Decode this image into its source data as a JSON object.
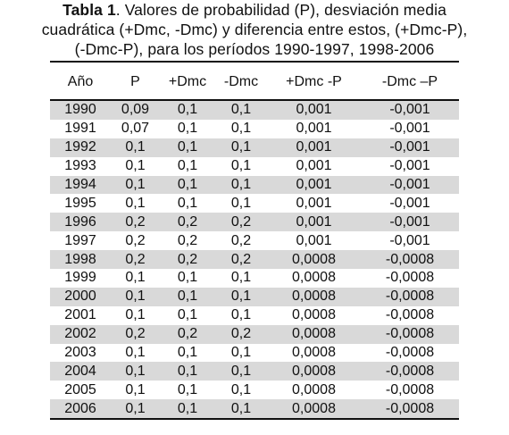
{
  "caption": {
    "label": "Tabla 1",
    "line1_rest": ". Valores de probabilidad (P), desviación media",
    "line2": "cuadrática (+Dmc, -Dmc) y diferencia entre estos, (+Dmc-P),",
    "line3": "(-Dmc-P), para los períodos 1990-1997, 1998-2006"
  },
  "table": {
    "headers": [
      "Año",
      "P",
      "+Dmc",
      "-Dmc",
      "+Dmc -P",
      "-Dmc –P"
    ],
    "rows": [
      [
        "1990",
        "0,09",
        "0,1",
        "0,1",
        "0,001",
        "-0,001"
      ],
      [
        "1991",
        "0,07",
        "0,1",
        "0,1",
        "0,001",
        "-0,001"
      ],
      [
        "1992",
        "0,1",
        "0,1",
        "0,1",
        "0,001",
        "-0,001"
      ],
      [
        "1993",
        "0,1",
        "0,1",
        "0,1",
        "0,001",
        "-0,001"
      ],
      [
        "1994",
        "0,1",
        "0,1",
        "0,1",
        "0,001",
        "-0,001"
      ],
      [
        "1995",
        "0,1",
        "0,1",
        "0,1",
        "0,001",
        "-0,001"
      ],
      [
        "1996",
        "0,2",
        "0,2",
        "0,2",
        "0,001",
        "-0,001"
      ],
      [
        "1997",
        "0,2",
        "0,2",
        "0,2",
        "0,001",
        "-0,001"
      ],
      [
        "1998",
        "0,2",
        "0,2",
        "0,2",
        "0,0008",
        "-0,0008"
      ],
      [
        "1999",
        "0,1",
        "0,1",
        "0,1",
        "0,0008",
        "-0,0008"
      ],
      [
        "2000",
        "0,1",
        "0,1",
        "0,1",
        "0,0008",
        "-0,0008"
      ],
      [
        "2001",
        "0,1",
        "0,1",
        "0,1",
        "0,0008",
        "-0,0008"
      ],
      [
        "2002",
        "0,2",
        "0,2",
        "0,2",
        "0,0008",
        "-0,0008"
      ],
      [
        "2003",
        "0,1",
        "0,1",
        "0,1",
        "0,0008",
        "-0,0008"
      ],
      [
        "2004",
        "0,1",
        "0,1",
        "0,1",
        "0,0008",
        "-0,0008"
      ],
      [
        "2005",
        "0,1",
        "0,1",
        "0,1",
        "0,0008",
        "-0,0008"
      ],
      [
        "2006",
        "0,1",
        "0,1",
        "0,1",
        "0,0008",
        "-0,0008"
      ]
    ],
    "shaded_color": "#d9d9d9",
    "rule_color": "#111111"
  }
}
